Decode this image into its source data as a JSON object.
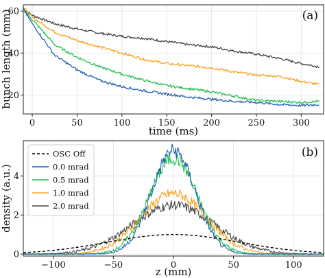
{
  "chart_data": [
    {
      "panel": "(a)",
      "type": "line",
      "xlabel": "time (ms)",
      "ylabel": "bunch length (mm)",
      "xlim": [
        -10,
        325
      ],
      "ylim": [
        11,
        63
      ],
      "xticks": [
        0,
        50,
        100,
        150,
        200,
        250,
        300
      ],
      "yticks": [
        20,
        40,
        60
      ],
      "grid": true,
      "series": [
        {
          "color": "#404040",
          "x": [
            -10,
            0,
            25,
            50,
            75,
            100,
            125,
            150,
            175,
            200,
            225,
            250,
            275,
            300,
            320
          ],
          "y": [
            61,
            58,
            54,
            51.5,
            49.5,
            48,
            47,
            45.5,
            44,
            43,
            41,
            39.5,
            37.5,
            35,
            33.5
          ]
        },
        {
          "color": "#f5a320",
          "x": [
            -10,
            0,
            25,
            50,
            75,
            100,
            125,
            150,
            175,
            200,
            225,
            250,
            275,
            300,
            320
          ],
          "y": [
            62,
            57,
            50,
            46,
            43,
            40,
            37,
            35,
            34,
            33,
            31,
            29.5,
            29,
            26.5,
            25
          ]
        },
        {
          "color": "#1fbf4c",
          "x": [
            -10,
            0,
            25,
            50,
            75,
            100,
            125,
            150,
            175,
            200,
            225,
            250,
            275,
            300,
            320
          ],
          "y": [
            61,
            56,
            44,
            38,
            33.5,
            30,
            27,
            24.5,
            23,
            21.5,
            19.5,
            17.5,
            17,
            16.5,
            17
          ]
        },
        {
          "color": "#1f5fb0",
          "x": [
            -10,
            0,
            25,
            50,
            75,
            100,
            125,
            150,
            175,
            200,
            225,
            250,
            275,
            300,
            320
          ],
          "y": [
            61,
            54,
            39,
            32,
            27,
            24,
            22,
            20.5,
            19,
            18,
            17,
            16.5,
            15.5,
            15,
            15.5
          ]
        }
      ]
    },
    {
      "panel": "(b)",
      "type": "line",
      "xlabel": "z (mm)",
      "ylabel": "density (a.u.)",
      "xlim": [
        -125,
        125
      ],
      "ylim": [
        -0.1,
        5.8
      ],
      "xticks": [
        -100,
        -50,
        0,
        50,
        100
      ],
      "yticks": [
        0,
        2,
        4
      ],
      "grid": true,
      "legend_position": "top-left",
      "series": [
        {
          "name": "OSC Off",
          "color": "#000000",
          "dashed": true,
          "amplitude": 1.0,
          "sigma": 55
        },
        {
          "name": "0.0 mrad",
          "color": "#1f5fb0",
          "amplitude": 5.3,
          "sigma": 18
        },
        {
          "name": "0.5 mrad",
          "color": "#1fbf4c",
          "amplitude": 4.9,
          "sigma": 20
        },
        {
          "name": "1.0 mrad",
          "color": "#f5a320",
          "amplitude": 3.1,
          "sigma": 27
        },
        {
          "name": "2.0 mrad",
          "color": "#404040",
          "amplitude": 2.5,
          "sigma": 34
        }
      ]
    }
  ]
}
